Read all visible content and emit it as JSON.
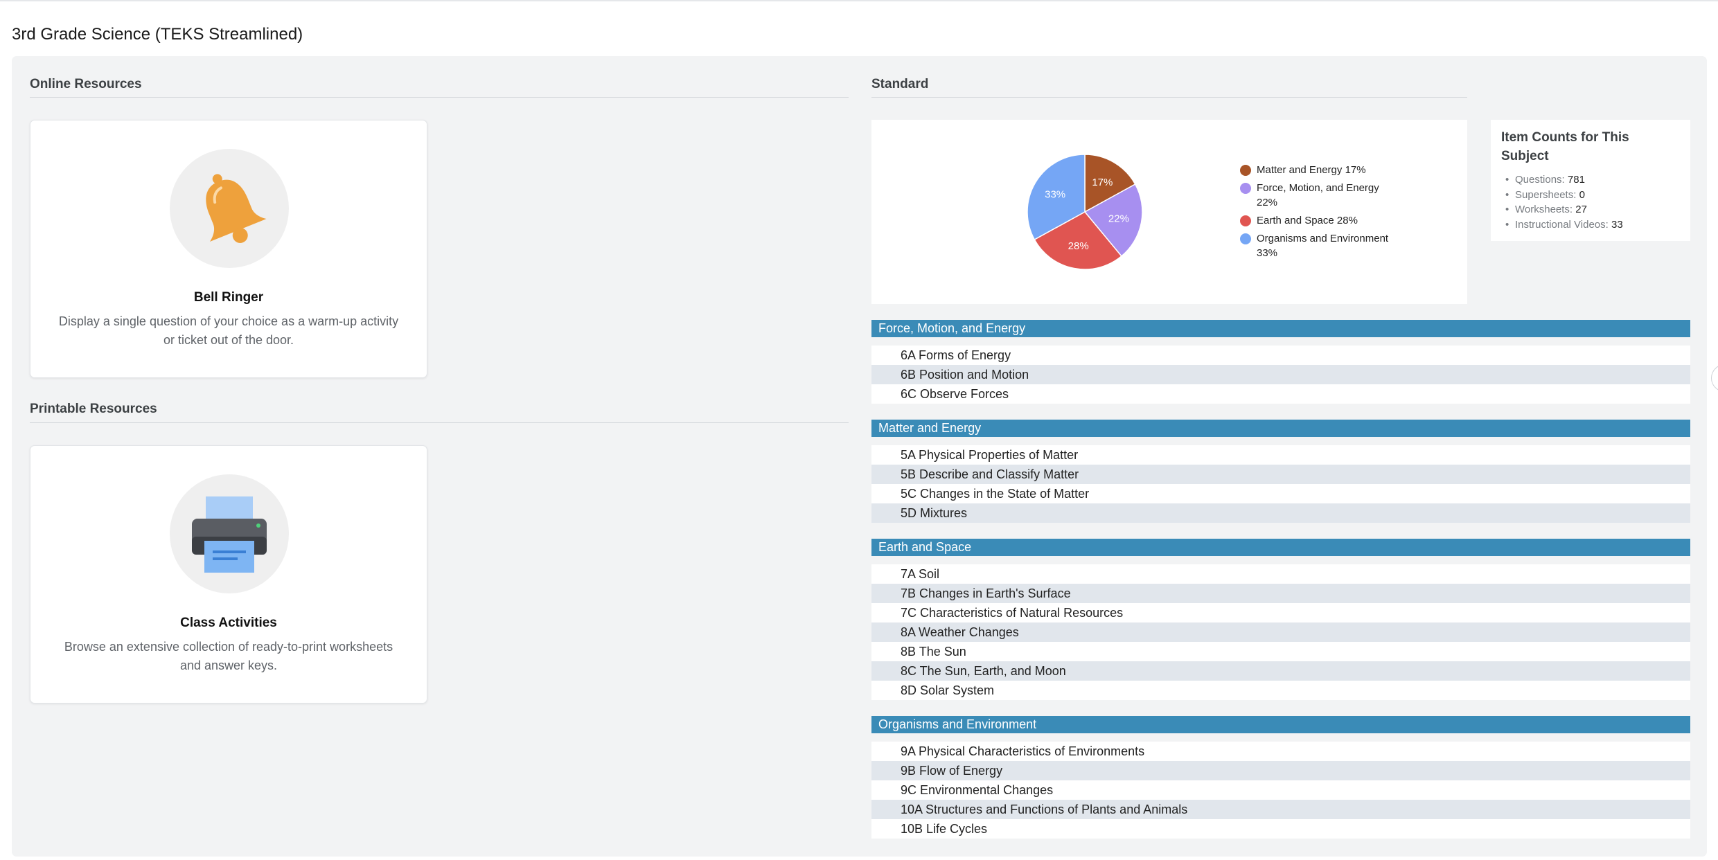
{
  "page": {
    "title": "3rd Grade Science (TEKS Streamlined)"
  },
  "online_resources": {
    "heading": "Online Resources",
    "card": {
      "title": "Bell Ringer",
      "description": "Display a single question of your choice as a warm-up activity or ticket out of the door.",
      "icon": "bell-icon"
    }
  },
  "printable_resources": {
    "heading": "Printable Resources",
    "card": {
      "title": "Class Activities",
      "description": "Browse an extensive collection of ready-to-print worksheets and answer keys.",
      "icon": "printer-icon"
    }
  },
  "standard": {
    "heading": "Standard"
  },
  "chart_data": {
    "type": "pie",
    "slices": [
      {
        "label": "Matter and Energy",
        "value": 17,
        "display": "17%",
        "legend": "Matter and Energy 17%",
        "color": "#a85427"
      },
      {
        "label": "Force, Motion, and Energy",
        "value": 22,
        "display": "22%",
        "legend": "Force, Motion, and Energy 22%",
        "color": "#a78ff0"
      },
      {
        "label": "Earth and Space",
        "value": 28,
        "display": "28%",
        "legend": "Earth and Space 28%",
        "color": "#e05551"
      },
      {
        "label": "Organisms and Environment",
        "value": 33,
        "display": "33%",
        "legend": "Organisms and Environment 33%",
        "color": "#75a6f5"
      }
    ],
    "legend_position": "right"
  },
  "item_counts": {
    "title": "Item Counts for This Subject",
    "items": [
      {
        "label": "Questions:",
        "value": "781"
      },
      {
        "label": "Supersheets:",
        "value": "0"
      },
      {
        "label": "Worksheets:",
        "value": "27"
      },
      {
        "label": "Instructional Videos:",
        "value": "33"
      }
    ]
  },
  "categories": [
    {
      "name": "Force, Motion, and Energy",
      "items": [
        "6A Forms of Energy",
        "6B Position and Motion",
        "6C Observe Forces"
      ]
    },
    {
      "name": "Matter and Energy",
      "items": [
        "5A Physical Properties of Matter",
        "5B Describe and Classify Matter",
        "5C Changes in the State of Matter",
        "5D Mixtures"
      ]
    },
    {
      "name": "Earth and Space",
      "items": [
        "7A Soil",
        "7B Changes in Earth's Surface",
        "7C Characteristics of Natural Resources",
        "8A Weather Changes",
        "8B The Sun",
        "8C The Sun, Earth, and Moon",
        "8D Solar System"
      ]
    },
    {
      "name": "Organisms and Environment",
      "items": [
        "9A Physical Characteristics of Environments",
        "9B Flow of Energy",
        "9C Environmental Changes",
        "10A Structures and Functions of Plants and Animals",
        "10B Life Cycles"
      ]
    }
  ]
}
